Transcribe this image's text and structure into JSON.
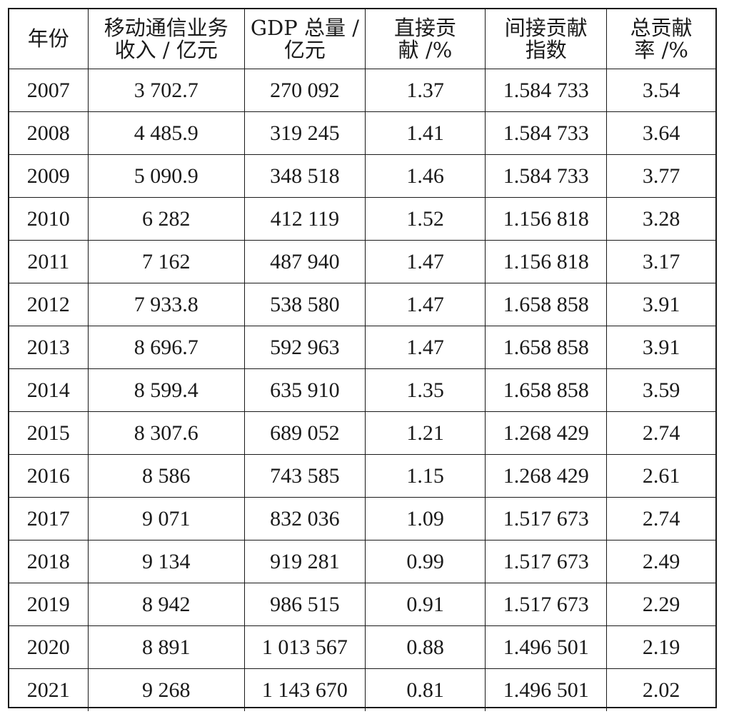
{
  "headers": [
    [
      "年份"
    ],
    [
      "移动通信业务",
      "收入 / 亿元"
    ],
    [
      "GDP 总量 /",
      "亿元"
    ],
    [
      "直接贡",
      "献 /%"
    ],
    [
      "间接贡献",
      "指数"
    ],
    [
      "总贡献",
      "率 /%"
    ]
  ],
  "rows": [
    [
      "2007",
      "3 702.7",
      "270 092",
      "1.37",
      "1.584 733",
      "3.54"
    ],
    [
      "2008",
      "4 485.9",
      "319 245",
      "1.41",
      "1.584 733",
      "3.64"
    ],
    [
      "2009",
      "5 090.9",
      "348 518",
      "1.46",
      "1.584 733",
      "3.77"
    ],
    [
      "2010",
      "6 282",
      "412 119",
      "1.52",
      "1.156 818",
      "3.28"
    ],
    [
      "2011",
      "7 162",
      "487 940",
      "1.47",
      "1.156 818",
      "3.17"
    ],
    [
      "2012",
      "7 933.8",
      "538 580",
      "1.47",
      "1.658 858",
      "3.91"
    ],
    [
      "2013",
      "8 696.7",
      "592 963",
      "1.47",
      "1.658 858",
      "3.91"
    ],
    [
      "2014",
      "8 599.4",
      "635 910",
      "1.35",
      "1.658 858",
      "3.59"
    ],
    [
      "2015",
      "8 307.6",
      "689 052",
      "1.21",
      "1.268 429",
      "2.74"
    ],
    [
      "2016",
      "8 586",
      "743 585",
      "1.15",
      "1.268 429",
      "2.61"
    ],
    [
      "2017",
      "9 071",
      "832 036",
      "1.09",
      "1.517 673",
      "2.74"
    ],
    [
      "2018",
      "9 134",
      "919 281",
      "0.99",
      "1.517 673",
      "2.49"
    ],
    [
      "2019",
      "8 942",
      "986 515",
      "0.91",
      "1.517 673",
      "2.29"
    ],
    [
      "2020",
      "8 891",
      "1 013 567",
      "0.88",
      "1.496 501",
      "2.19"
    ],
    [
      "2021",
      "9 268",
      "1 143 670",
      "0.81",
      "1.496 501",
      "2.02"
    ]
  ]
}
